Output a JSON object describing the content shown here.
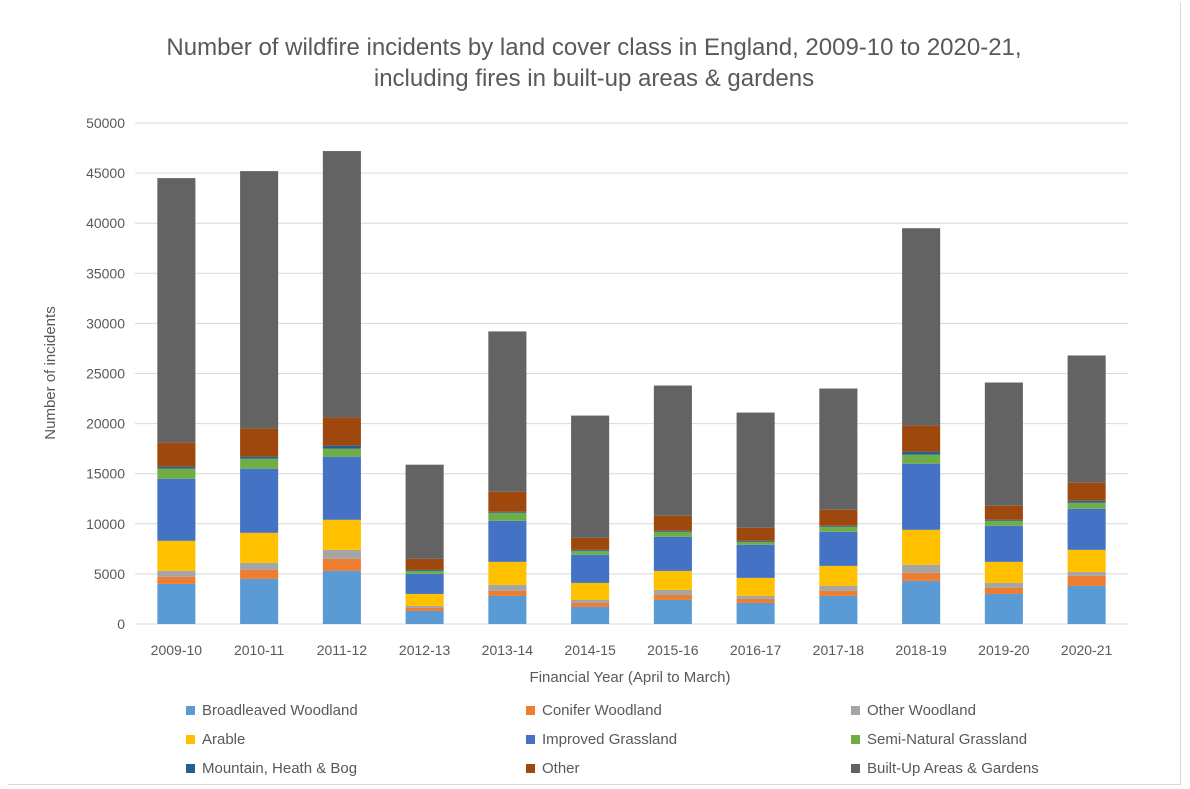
{
  "chart_data": {
    "type": "bar",
    "stacked": true,
    "title_lines": [
      "Number of wildfire incidents by land cover class in England, 2009-10 to 2020-21,",
      "including fires in built-up areas & gardens"
    ],
    "xlabel": "Financial Year (April to March)",
    "ylabel": "Number of incidents",
    "ylim": [
      0,
      50000
    ],
    "yticks": [
      0,
      5000,
      10000,
      15000,
      20000,
      25000,
      30000,
      35000,
      40000,
      45000,
      50000
    ],
    "grid": true,
    "legend_position": "bottom",
    "categories": [
      "2009-10",
      "2010-11",
      "2011-12",
      "2012-13",
      "2013-14",
      "2014-15",
      "2015-16",
      "2016-17",
      "2017-18",
      "2018-19",
      "2019-20",
      "2020-21"
    ],
    "series": [
      {
        "name": "Broadleaved Woodland",
        "color": "#5b9bd5",
        "values": [
          4000,
          4500,
          5300,
          1300,
          2800,
          1700,
          2400,
          2100,
          2800,
          4300,
          3000,
          3800
        ]
      },
      {
        "name": "Conifer Woodland",
        "color": "#ed7d31",
        "values": [
          700,
          900,
          1200,
          300,
          500,
          400,
          500,
          400,
          500,
          800,
          600,
          1000
        ]
      },
      {
        "name": "Other Woodland",
        "color": "#a5a5a5",
        "values": [
          600,
          700,
          900,
          200,
          600,
          300,
          500,
          300,
          500,
          800,
          500,
          400
        ]
      },
      {
        "name": "Arable",
        "color": "#ffc000",
        "values": [
          3000,
          3000,
          3000,
          1200,
          2300,
          1700,
          1900,
          1800,
          2000,
          3500,
          2100,
          2200
        ]
      },
      {
        "name": "Improved Grassland",
        "color": "#4472c4",
        "values": [
          6200,
          6400,
          6300,
          2000,
          4100,
          2800,
          3400,
          3300,
          3400,
          6600,
          3600,
          4100
        ]
      },
      {
        "name": "Semi-Natural Grassland",
        "color": "#70ad47",
        "values": [
          1000,
          1000,
          800,
          300,
          800,
          400,
          500,
          300,
          500,
          900,
          500,
          600
        ]
      },
      {
        "name": "Mountain, Heath & Bog",
        "color": "#255e91",
        "values": [
          200,
          200,
          300,
          100,
          100,
          100,
          100,
          100,
          100,
          300,
          100,
          200
        ]
      },
      {
        "name": "Other",
        "color": "#9e480e",
        "values": [
          2400,
          2800,
          2800,
          1100,
          2000,
          1200,
          1500,
          1300,
          1600,
          2600,
          1400,
          1800
        ]
      },
      {
        "name": "Built-Up Areas & Gardens",
        "color": "#636363",
        "values": [
          26400,
          25700,
          26600,
          9400,
          16000,
          12200,
          13000,
          11500,
          12100,
          19700,
          12300,
          12700
        ]
      }
    ]
  }
}
